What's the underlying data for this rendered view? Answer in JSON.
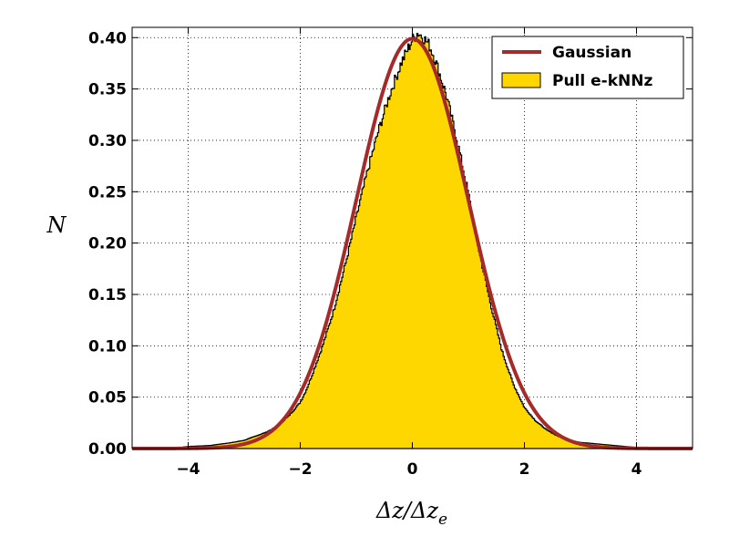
{
  "chart_data": {
    "type": "area",
    "title": "",
    "xlabel": "Δz/Δz",
    "xlabel_subscript": "e",
    "ylabel": "N",
    "xlim": [
      -5,
      5
    ],
    "ylim": [
      0,
      0.41
    ],
    "x_ticks": [
      -4,
      -2,
      0,
      2,
      4
    ],
    "x_tick_labels": [
      "−4",
      "−2",
      "0",
      "2",
      "4"
    ],
    "y_ticks": [
      0.0,
      0.05,
      0.1,
      0.15,
      0.2,
      0.25,
      0.3,
      0.35,
      0.4
    ],
    "y_tick_labels": [
      "0.00",
      "0.05",
      "0.10",
      "0.15",
      "0.20",
      "0.25",
      "0.30",
      "0.35",
      "0.40"
    ],
    "grid": true,
    "legend_position": "top-right",
    "series": [
      {
        "name": "Gaussian",
        "kind": "line",
        "color": "#A52A2A",
        "function": "standard normal pdf (mean 0, sigma 1)"
      },
      {
        "name": "Pull e-kNNz",
        "kind": "step-histogram",
        "color": "#FFD700",
        "edge_color": "#000000",
        "points": [
          [
            -4.0,
            0.002
          ],
          [
            -3.6,
            0.003
          ],
          [
            -3.2,
            0.006
          ],
          [
            -3.0,
            0.008
          ],
          [
            -2.8,
            0.012
          ],
          [
            -2.6,
            0.016
          ],
          [
            -2.4,
            0.022
          ],
          [
            -2.2,
            0.032
          ],
          [
            -2.0,
            0.045
          ],
          [
            -1.9,
            0.056
          ],
          [
            -1.8,
            0.07
          ],
          [
            -1.6,
            0.1
          ],
          [
            -1.4,
            0.135
          ],
          [
            -1.2,
            0.178
          ],
          [
            -1.0,
            0.225
          ],
          [
            -0.8,
            0.27
          ],
          [
            -0.6,
            0.31
          ],
          [
            -0.4,
            0.345
          ],
          [
            -0.2,
            0.375
          ],
          [
            0.0,
            0.398
          ],
          [
            0.1,
            0.405
          ],
          [
            0.2,
            0.4
          ],
          [
            0.3,
            0.393
          ],
          [
            0.4,
            0.38
          ],
          [
            0.6,
            0.345
          ],
          [
            0.8,
            0.3
          ],
          [
            1.0,
            0.248
          ],
          [
            1.2,
            0.19
          ],
          [
            1.4,
            0.14
          ],
          [
            1.6,
            0.095
          ],
          [
            1.8,
            0.063
          ],
          [
            2.0,
            0.04
          ],
          [
            2.2,
            0.027
          ],
          [
            2.4,
            0.018
          ],
          [
            2.6,
            0.012
          ],
          [
            2.8,
            0.008
          ],
          [
            3.0,
            0.006
          ],
          [
            3.4,
            0.004
          ],
          [
            3.8,
            0.002
          ],
          [
            4.0,
            0.001
          ]
        ]
      }
    ]
  }
}
